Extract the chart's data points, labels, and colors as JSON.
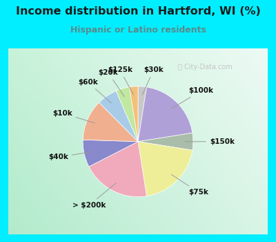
{
  "title": "Income distribution in Hartford, WI (%)",
  "subtitle": "Hispanic or Latino residents",
  "title_color": "#1a1a1a",
  "subtitle_color": "#5a8a8a",
  "background_outer": "#00eeff",
  "labels": [
    "$30k",
    "$100k",
    "$150k",
    "$75k",
    "> $200k",
    "$40k",
    "$10k",
    "$60k",
    "$20k",
    "$125k"
  ],
  "values": [
    2.5,
    20.0,
    5.0,
    20.0,
    20.0,
    8.0,
    12.0,
    6.0,
    4.0,
    2.5
  ],
  "colors": [
    "#c8c8c8",
    "#b0a0d8",
    "#aabcaa",
    "#eeee99",
    "#f0aabb",
    "#8888cc",
    "#f0b090",
    "#a8cce8",
    "#c0e8a0",
    "#f4c07a"
  ],
  "startangle": 90,
  "watermark": "City-Data.com"
}
